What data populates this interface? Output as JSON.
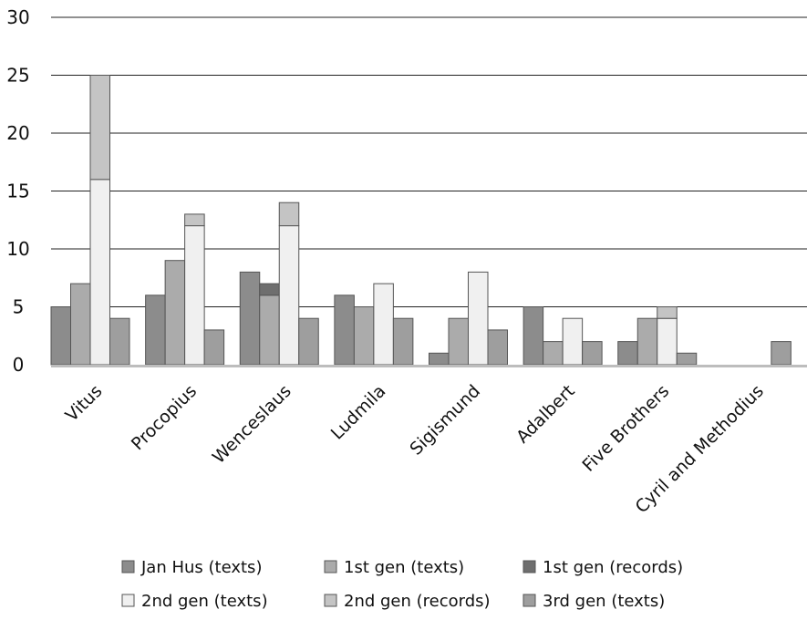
{
  "chart_data": {
    "type": "bar",
    "title": "",
    "xlabel": "",
    "ylabel": "",
    "ylim": [
      0,
      30
    ],
    "yticks": [
      0,
      5,
      10,
      15,
      20,
      25,
      30
    ],
    "grid": true,
    "legend_position": "bottom",
    "categories": [
      "Vitus",
      "Procopius",
      "Wenceslaus",
      "Ludmila",
      "Sigismund",
      "Adalbert",
      "Five Brothers",
      "Cyril and Methodius"
    ],
    "series": [
      {
        "name": "Jan Hus (texts)",
        "color": "#8c8c8c",
        "values": [
          5,
          6,
          8,
          6,
          1,
          5,
          2,
          0
        ]
      },
      {
        "name": "1st gen (texts)",
        "color": "#ababab",
        "values": [
          7,
          9,
          6,
          5,
          4,
          2,
          4,
          0
        ]
      },
      {
        "name": "1st gen (records)",
        "color": "#6e6e6e",
        "values": [
          0,
          0,
          1,
          0,
          0,
          0,
          0,
          0
        ]
      },
      {
        "name": "2nd gen (texts)",
        "color": "#f0f0f0",
        "values": [
          16,
          12,
          12,
          7,
          8,
          4,
          4,
          0
        ]
      },
      {
        "name": "2nd gen (records)",
        "color": "#c4c4c4",
        "values": [
          9,
          1,
          2,
          0,
          0,
          0,
          1,
          0
        ]
      },
      {
        "name": "3rd gen (texts)",
        "color": "#9e9e9e",
        "values": [
          4,
          3,
          4,
          4,
          3,
          2,
          1,
          2
        ]
      }
    ],
    "stacks": [
      [
        0
      ],
      [
        1,
        2
      ],
      [
        3,
        4
      ],
      [
        5
      ]
    ]
  }
}
